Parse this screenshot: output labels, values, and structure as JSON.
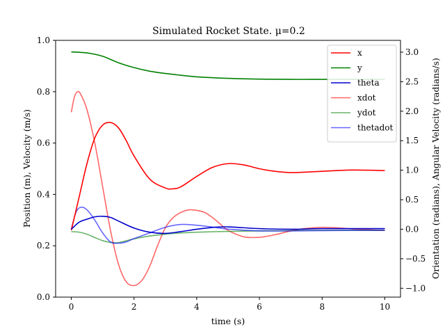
{
  "chart_data": {
    "type": "line",
    "title": "Simulated Rocket State. μ=0.2",
    "xlabel": "time (s)",
    "ylabel_left": "Position (m), Velocity (m/s)",
    "ylabel_right": "Orientation (radians), Angular Velocity (radians/s)",
    "xlim": [
      -0.5,
      10.5
    ],
    "ylim_left": [
      0.0,
      1.0
    ],
    "ylim_right": [
      -1.15,
      3.2
    ],
    "x_ticks": [
      0,
      2,
      4,
      6,
      8,
      10
    ],
    "x_tick_labels": [
      "0",
      "2",
      "4",
      "6",
      "8",
      "10"
    ],
    "y_left_ticks": [
      0.0,
      0.2,
      0.4,
      0.6,
      0.8,
      1.0
    ],
    "y_left_tick_labels": [
      "0.0",
      "0.2",
      "0.4",
      "0.6",
      "0.8",
      "1.0"
    ],
    "y_right_ticks": [
      -1.0,
      -0.5,
      0.0,
      0.5,
      1.0,
      1.5,
      2.0,
      2.5,
      3.0
    ],
    "y_right_tick_labels": [
      "−1.0",
      "−0.5",
      "0.0",
      "0.5",
      "1.0",
      "1.5",
      "2.0",
      "2.5",
      "3.0"
    ],
    "grid": false,
    "legend_position": "top-right",
    "series": [
      {
        "name": "x",
        "axis": "left",
        "color": "#ff0000",
        "opacity": 1.0,
        "x": [
          0,
          0.25,
          0.5,
          0.75,
          1.0,
          1.25,
          1.5,
          1.75,
          2.0,
          2.5,
          3.0,
          3.25,
          3.5,
          4.0,
          4.5,
          5.0,
          5.5,
          6.0,
          6.5,
          7.0,
          7.5,
          8.0,
          8.5,
          9.0,
          10.0
        ],
        "y": [
          0.26,
          0.39,
          0.52,
          0.62,
          0.67,
          0.68,
          0.66,
          0.61,
          0.55,
          0.46,
          0.425,
          0.422,
          0.43,
          0.47,
          0.505,
          0.52,
          0.515,
          0.5,
          0.49,
          0.485,
          0.487,
          0.49,
          0.493,
          0.495,
          0.493
        ]
      },
      {
        "name": "y",
        "axis": "left",
        "color": "#008000",
        "opacity": 1.0,
        "x": [
          0,
          0.5,
          1.0,
          1.5,
          2.0,
          2.5,
          3.0,
          3.5,
          4.0,
          5.0,
          6.0,
          7.0,
          8.0,
          9.0,
          10.0
        ],
        "y": [
          0.955,
          0.951,
          0.938,
          0.913,
          0.894,
          0.88,
          0.871,
          0.864,
          0.858,
          0.852,
          0.849,
          0.848,
          0.848,
          0.848,
          0.848
        ]
      },
      {
        "name": "theta",
        "axis": "right",
        "color": "#0000cc",
        "opacity": 1.0,
        "x": [
          0,
          0.25,
          0.5,
          0.75,
          1.0,
          1.25,
          1.5,
          2.0,
          2.5,
          3.0,
          3.5,
          4.0,
          4.5,
          5.0,
          6.0,
          7.0,
          8.0,
          9.0,
          10.0
        ],
        "y": [
          0.0,
          0.12,
          0.17,
          0.21,
          0.22,
          0.2,
          0.14,
          0.02,
          -0.05,
          -0.07,
          -0.04,
          0.0,
          0.03,
          0.04,
          0.01,
          0.0,
          0.01,
          0.01,
          0.01
        ]
      },
      {
        "name": "xdot",
        "axis": "left",
        "color": "#ff0000",
        "opacity": 0.6,
        "x": [
          0,
          0.1,
          0.2,
          0.3,
          0.5,
          0.75,
          1.0,
          1.25,
          1.5,
          1.75,
          2.0,
          2.25,
          2.5,
          2.75,
          3.0,
          3.25,
          3.5,
          3.75,
          4.0,
          4.25,
          4.5,
          4.75,
          5.0,
          5.5,
          6.0,
          6.5,
          7.0,
          7.5,
          8.0,
          8.5,
          9.0,
          9.5,
          10.0
        ],
        "y": [
          0.72,
          0.78,
          0.8,
          0.79,
          0.73,
          0.6,
          0.43,
          0.26,
          0.13,
          0.06,
          0.045,
          0.065,
          0.12,
          0.2,
          0.27,
          0.31,
          0.33,
          0.34,
          0.338,
          0.33,
          0.31,
          0.285,
          0.26,
          0.235,
          0.233,
          0.243,
          0.258,
          0.268,
          0.272,
          0.27,
          0.265,
          0.262,
          0.26
        ]
      },
      {
        "name": "ydot",
        "axis": "left",
        "color": "#008000",
        "opacity": 0.6,
        "x": [
          0,
          0.25,
          0.5,
          0.75,
          1.0,
          1.25,
          1.5,
          2.0,
          2.5,
          3.0,
          3.5,
          4.0,
          5.0,
          6.0,
          7.0,
          8.0,
          9.0,
          10.0
        ],
        "y": [
          0.255,
          0.253,
          0.245,
          0.232,
          0.22,
          0.213,
          0.212,
          0.227,
          0.238,
          0.245,
          0.25,
          0.253,
          0.256,
          0.258,
          0.259,
          0.26,
          0.26,
          0.26
        ]
      },
      {
        "name": "thetadot",
        "axis": "left",
        "color": "#0000ff",
        "opacity": 0.6,
        "x": [
          0,
          0.15,
          0.3,
          0.5,
          0.75,
          1.0,
          1.25,
          1.5,
          1.75,
          2.0,
          2.5,
          3.0,
          3.5,
          4.0,
          4.5,
          5.0,
          6.0,
          7.0,
          8.0,
          9.0,
          10.0
        ],
        "y": [
          0.265,
          0.33,
          0.35,
          0.34,
          0.3,
          0.25,
          0.215,
          0.21,
          0.215,
          0.228,
          0.25,
          0.272,
          0.283,
          0.28,
          0.273,
          0.265,
          0.258,
          0.258,
          0.259,
          0.26,
          0.26
        ]
      }
    ]
  }
}
